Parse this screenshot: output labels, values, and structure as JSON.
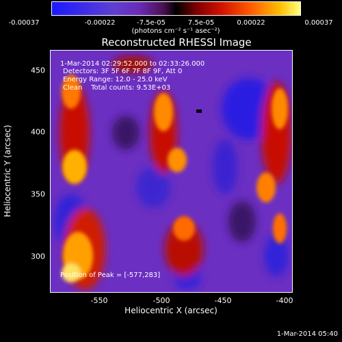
{
  "colorbar": {
    "ticks": [
      "-0.00037",
      "-0.00022",
      "-7.5e-05",
      "7.5e-05",
      "0.00022",
      "0.00037"
    ],
    "unit": "(photons cm⁻² s⁻¹ asec⁻²)"
  },
  "title": "Reconstructed RHESSI Image",
  "annotations": {
    "time": "1-Mar-2014 02:29:52.000 to 02:33:26.000",
    "detectors": "Detectors: 3F 5F 6F 7F 8F 9F, Att 0",
    "energy": "Energy Range: 12.0 - 25.0 keV",
    "clean": "Clean    Total counts: 9.53E+03",
    "peak": "Position of Peak = [-577,283]"
  },
  "axes": {
    "xlabel": "Heliocentric X (arcsec)",
    "ylabel": "Heliocentric Y (arcsec)",
    "xticks": [
      "-550",
      "-500",
      "-450",
      "-400"
    ],
    "yticks": [
      "450",
      "400",
      "350",
      "300"
    ]
  },
  "timestamp": "1-Mar-2014 05:40",
  "colors": {
    "background": "#000000",
    "neg": "#3a1fd8",
    "mid": "#6a2cc0",
    "hot": "#ff6a00",
    "peak": "#ffe040"
  }
}
